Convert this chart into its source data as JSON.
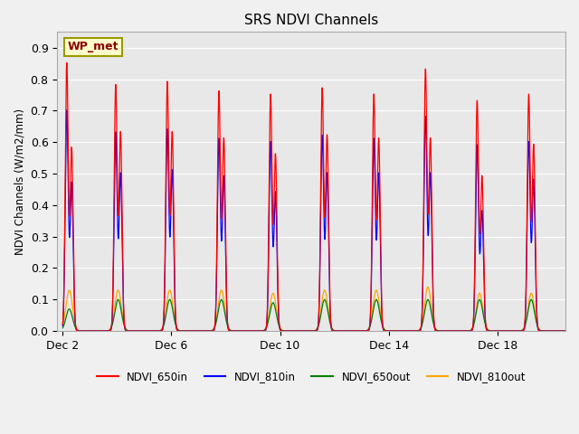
{
  "title": "SRS NDVI Channels",
  "ylabel": "NDVI Channels (W/m2/mm)",
  "xlabel": "",
  "annotation": "WP_met",
  "ylim": [
    0.0,
    0.95
  ],
  "yticks": [
    0.0,
    0.1,
    0.2,
    0.3,
    0.4,
    0.5,
    0.6,
    0.7,
    0.8,
    0.9
  ],
  "figsize": [
    6.4,
    4.8
  ],
  "dpi": 100,
  "plot_bg_color": "#e8e8e8",
  "fig_bg_color": "#f0f0f0",
  "start_day": 2.0,
  "total_days": 18.5,
  "xtick_positions": [
    2,
    6,
    10,
    14,
    18
  ],
  "xtick_labels": [
    "Dec 2",
    "Dec 6",
    "Dec 10",
    "Dec 14",
    "Dec 18"
  ],
  "xlim": [
    1.8,
    20.5
  ],
  "num_day_groups": 10,
  "day_offsets": [
    2.15,
    3.95,
    5.85,
    7.75,
    9.65,
    11.55,
    13.45,
    15.35,
    17.25,
    19.15
  ],
  "peak_sep": 0.18,
  "sigma_in": 0.055,
  "sigma_out": 0.12,
  "peaks_650in": [
    0.85,
    0.78,
    0.79,
    0.76,
    0.75,
    0.77,
    0.75,
    0.83,
    0.73,
    0.75
  ],
  "peaks_650in2": [
    0.58,
    0.63,
    0.63,
    0.61,
    0.56,
    0.62,
    0.61,
    0.61,
    0.49,
    0.59
  ],
  "peaks_810in": [
    0.7,
    0.63,
    0.64,
    0.61,
    0.6,
    0.62,
    0.61,
    0.68,
    0.59,
    0.6
  ],
  "peaks_810in2": [
    0.47,
    0.5,
    0.51,
    0.49,
    0.44,
    0.5,
    0.5,
    0.5,
    0.38,
    0.48
  ],
  "peaks_650out": [
    0.07,
    0.1,
    0.1,
    0.1,
    0.09,
    0.1,
    0.1,
    0.1,
    0.1,
    0.1
  ],
  "peaks_810out": [
    0.13,
    0.13,
    0.13,
    0.13,
    0.12,
    0.13,
    0.13,
    0.14,
    0.12,
    0.12
  ],
  "line_colors": [
    "red",
    "blue",
    "green",
    "orange"
  ],
  "legend_labels": [
    "NDVI_650in",
    "NDVI_810in",
    "NDVI_650out",
    "NDVI_810out"
  ]
}
